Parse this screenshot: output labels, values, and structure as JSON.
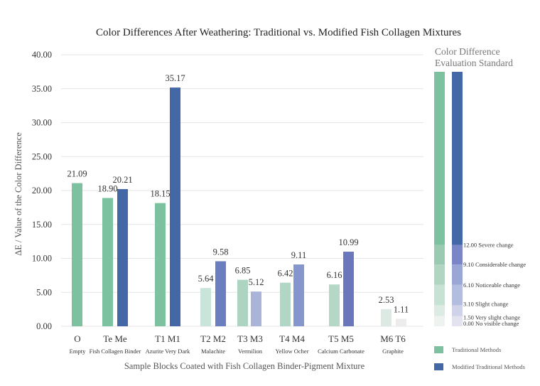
{
  "chart_data": {
    "type": "bar",
    "title": "Color Differences After Weathering: Traditional vs. Modified Fish Collagen Mixtures",
    "xlabel": "Sample Blocks Coated with Fish Collagen Binder-Pigment Mixture",
    "ylabel": "ΔE / Value of the Color Difference",
    "ylim": [
      0,
      40
    ],
    "yticks": [
      "0.00",
      "5.00",
      "10.00",
      "15.00",
      "20.00",
      "25.00",
      "30.00",
      "35.00",
      "40.00"
    ],
    "grid": true,
    "groups": [
      {
        "codes": "O",
        "category": "Empty",
        "bars": [
          {
            "series": "traditional",
            "value": 21.09,
            "label": "21.09",
            "color": "#7cc1a0"
          }
        ]
      },
      {
        "codes": "Te Me",
        "category": "Fish Collagen Binder",
        "bars": [
          {
            "series": "traditional",
            "value": 18.9,
            "label": "18.90",
            "color": "#7cc1a0"
          },
          {
            "series": "modified",
            "value": 20.21,
            "label": "20.21",
            "color": "#4467a6"
          }
        ]
      },
      {
        "codes": "T1 M1",
        "category": "Azurite Very Dark",
        "bars": [
          {
            "series": "traditional",
            "value": 18.15,
            "label": "18.15",
            "color": "#7cc1a0"
          },
          {
            "series": "modified",
            "value": 35.17,
            "label": "35.17",
            "color": "#4467a6"
          }
        ]
      },
      {
        "codes": "T2 M2",
        "category": "Malachite",
        "bars": [
          {
            "series": "traditional",
            "value": 5.64,
            "label": "5.64",
            "color": "#c9e4d8"
          },
          {
            "series": "modified",
            "value": 9.58,
            "label": "9.58",
            "color": "#6b7fc0"
          }
        ]
      },
      {
        "codes": "T3 M3",
        "category": "Vermilion",
        "bars": [
          {
            "series": "traditional",
            "value": 6.85,
            "label": "6.85",
            "color": "#acd4c0"
          },
          {
            "series": "modified",
            "value": 5.12,
            "label": "5.12",
            "color": "#a9b4d8"
          }
        ]
      },
      {
        "codes": "T4 M4",
        "category": "Yellow Ocher",
        "bars": [
          {
            "series": "traditional",
            "value": 6.42,
            "label": "6.42",
            "color": "#b1d6c3"
          },
          {
            "series": "modified",
            "value": 9.11,
            "label": "9.11",
            "color": "#8496cc"
          }
        ]
      },
      {
        "codes": "T5 M5",
        "category": "Calcium Carbonate",
        "bars": [
          {
            "series": "traditional",
            "value": 6.16,
            "label": "6.16",
            "color": "#b5d8c6"
          },
          {
            "series": "modified",
            "value": 10.99,
            "label": "10.99",
            "color": "#6a77bb"
          }
        ]
      },
      {
        "codes": "M6  T6",
        "category": "Graphite",
        "bars": [
          {
            "series": "modified",
            "value": 2.53,
            "label": "2.53",
            "color": "#dde9e3"
          },
          {
            "series": "traditional",
            "value": 1.11,
            "label": "1.11",
            "color": "#ececec"
          }
        ]
      }
    ],
    "standard": {
      "title": [
        "Color Difference",
        "Evaluation Standard"
      ],
      "range": [
        0,
        37.5
      ],
      "levels": [
        {
          "from": 0.0,
          "to": 1.5,
          "label": "0.00  No visible change",
          "trad_color": "#eef3f0",
          "mod_color": "#e3e2ef"
        },
        {
          "from": 1.5,
          "to": 3.1,
          "label": "1.50  Very slight change",
          "trad_color": "#dcebe3",
          "mod_color": "#cfd2e8"
        },
        {
          "from": 3.1,
          "to": 6.1,
          "label": "3.10  Slight change",
          "trad_color": "#c6e2d4",
          "mod_color": "#b3bde0"
        },
        {
          "from": 6.1,
          "to": 9.1,
          "label": "6.10  Noticeable change",
          "trad_color": "#b0d6c2",
          "mod_color": "#9aa7d6"
        },
        {
          "from": 9.1,
          "to": 12.0,
          "label": "9.10  Considerable change",
          "trad_color": "#9acbb2",
          "mod_color": "#7a86c6"
        },
        {
          "from": 12.0,
          "to": 37.5,
          "label": "12.00  Severe change",
          "trad_color": "#7cc1a0",
          "mod_color": "#4467a6"
        }
      ]
    },
    "legend": {
      "placement": "bottom-right",
      "entries": [
        {
          "label": "Traditional Methods",
          "color": "#7cc1a0"
        },
        {
          "label": "Modified Traditional Methods",
          "color": "#4467a6"
        }
      ]
    }
  }
}
